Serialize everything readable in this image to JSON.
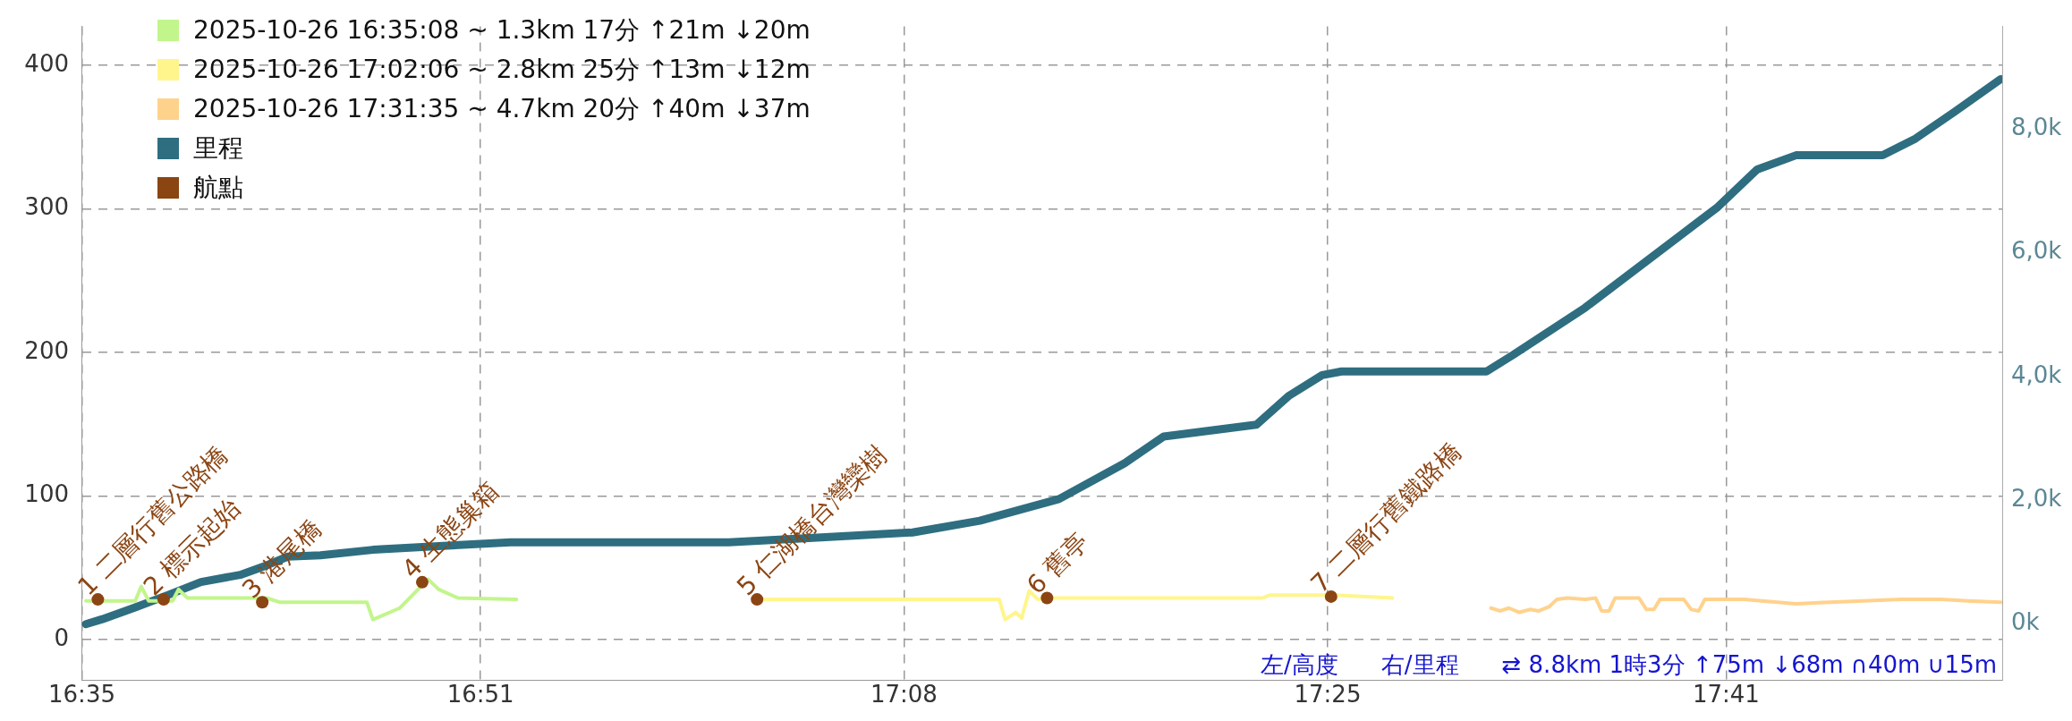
{
  "chart_data": {
    "type": "line",
    "legend": "top left",
    "grid": true,
    "marker": "none",
    "xlim": [
      16.583,
      17.868
    ],
    "xticks": [
      {
        "value": 16.5833,
        "label": "16:35"
      },
      {
        "value": 16.85,
        "label": "16:51"
      },
      {
        "value": 17.1333,
        "label": "17:08"
      },
      {
        "value": 17.4167,
        "label": "17:25"
      },
      {
        "value": 17.6833,
        "label": "17:41"
      }
    ],
    "ylim": [
      -28,
      427
    ],
    "yticks": [
      0,
      100,
      200,
      300,
      400
    ],
    "y2lim": [
      -900,
      9650
    ],
    "y2ticks": [
      {
        "value": 0,
        "label": "0k"
      },
      {
        "value": 2000,
        "label": "2,0k"
      },
      {
        "value": 4000,
        "label": "4,0k"
      },
      {
        "value": 6000,
        "label": "6,0k"
      },
      {
        "value": 8000,
        "label": "8,0k"
      }
    ],
    "series": [
      {
        "name": "2025-10-26 16:35:08 ~ 1.3km 17分 ↑21m ↓20m",
        "color": "#c2f58c",
        "x": [
          16.586,
          16.619,
          16.623,
          16.628,
          16.639,
          16.644,
          16.648,
          16.654,
          16.707,
          16.716,
          16.774,
          16.778,
          16.796,
          16.811,
          16.815,
          16.822,
          16.835,
          16.874
        ],
        "values": [
          27,
          27,
          37,
          27,
          27,
          27,
          35,
          29,
          29,
          26,
          26,
          14,
          22,
          38,
          42,
          35,
          29,
          28
        ]
      },
      {
        "name": "2025-10-26 17:02:06 ~ 2.8km 25分 ↑13m ↓12m",
        "color": "#fff58c",
        "x": [
          17.035,
          17.197,
          17.201,
          17.208,
          17.212,
          17.217,
          17.223,
          17.229,
          17.373,
          17.378,
          17.422,
          17.46
        ],
        "values": [
          28,
          28,
          14,
          19,
          15,
          34,
          28,
          29,
          29,
          31,
          31,
          29
        ]
      },
      {
        "name": "2025-10-26 17:31:35 ~ 4.7km 20分 ↑40m ↓37m",
        "color": "#ffd28c",
        "x": [
          17.526,
          17.532,
          17.538,
          17.545,
          17.552,
          17.558,
          17.565,
          17.57,
          17.577,
          17.589,
          17.596,
          17.6,
          17.605,
          17.609,
          17.625,
          17.63,
          17.635,
          17.639,
          17.655,
          17.66,
          17.665,
          17.669,
          17.677,
          17.695,
          17.73,
          17.775,
          17.801,
          17.827,
          17.845,
          17.867
        ],
        "values": [
          22,
          20,
          22,
          19,
          21,
          20,
          23,
          28,
          29,
          28,
          29,
          20,
          20,
          29,
          29,
          21,
          21,
          28,
          28,
          21,
          20,
          28,
          28,
          28,
          25,
          27,
          28,
          28,
          27,
          26
        ]
      },
      {
        "name": "里程",
        "axis": "y2",
        "color": "#2e6e80",
        "x": [
          16.586,
          16.597,
          16.619,
          16.641,
          16.663,
          16.69,
          16.707,
          16.721,
          16.743,
          16.778,
          16.822,
          16.87,
          17.016,
          17.078,
          17.139,
          17.184,
          17.237,
          17.281,
          17.307,
          17.369,
          17.391,
          17.413,
          17.426,
          17.523,
          17.541,
          17.589,
          17.66,
          17.677,
          17.704,
          17.73,
          17.788,
          17.81,
          17.836,
          17.867
        ],
        "values": [
          0,
          80,
          270,
          470,
          680,
          800,
          950,
          1090,
          1110,
          1200,
          1260,
          1320,
          1320,
          1400,
          1480,
          1670,
          2020,
          2600,
          3030,
          3220,
          3690,
          4020,
          4080,
          4080,
          4350,
          5110,
          6410,
          6720,
          7340,
          7570,
          7570,
          7840,
          8270,
          8800
        ]
      },
      {
        "name": "航點",
        "type": "scatter",
        "marker": "circle",
        "color": "#8b4513",
        "x": [
          16.594,
          16.638,
          16.704,
          16.811,
          17.035,
          17.229,
          17.419
        ],
        "values": [
          28,
          28,
          26,
          40,
          28,
          29,
          30
        ]
      }
    ],
    "annotations": [
      {
        "text": "1 二層行舊公路橋",
        "x": 16.594,
        "y": 28
      },
      {
        "text": "2 標示起始",
        "x": 16.638,
        "y": 28
      },
      {
        "text": "3 港尾橋",
        "x": 16.704,
        "y": 26
      },
      {
        "text": "4 生態巢箱",
        "x": 16.811,
        "y": 40
      },
      {
        "text": "5 仁湖橋台灣欒樹",
        "x": 17.035,
        "y": 28
      },
      {
        "text": "6 舊亭",
        "x": 17.229,
        "y": 29
      },
      {
        "text": "7 二層行舊鐵路橋",
        "x": 17.419,
        "y": 30
      },
      "左/高度",
      "右/里程",
      "⇄ 8.8km 1時3分 ↑75m ↓68m ∩40m ∪15m"
    ]
  }
}
